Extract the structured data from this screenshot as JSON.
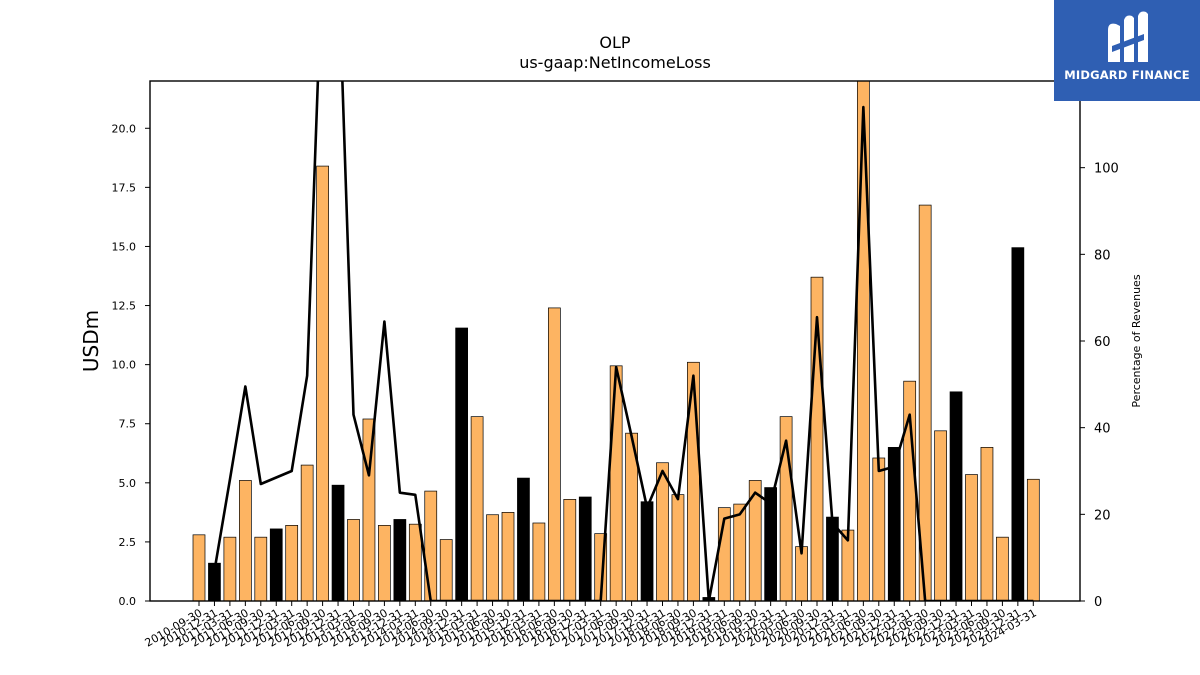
{
  "chart_data": {
    "type": "bar",
    "title": "OLP",
    "subtitle": "us-gaap:NetIncomeLoss",
    "ylabel": "USDm",
    "y2label": "Percentage of Revenues",
    "ylim": [
      0,
      22
    ],
    "y2lim": [
      0,
      120
    ],
    "yticks": [
      "0.0",
      "2.5",
      "5.0",
      "7.5",
      "10.0",
      "12.5",
      "15.0",
      "17.5",
      "20.0"
    ],
    "y2ticks": [
      "0",
      "20",
      "40",
      "60",
      "80",
      "100"
    ],
    "grid": false,
    "colors": {
      "positive": "#fdb462",
      "highlight": "#000000",
      "line": "#000000"
    },
    "categories": [
      "2010-09-30",
      "2010-12-31",
      "2011-03-31",
      "2011-06-30",
      "2011-09-30",
      "2011-12-31",
      "2012-03-31",
      "2012-06-30",
      "2012-09-30",
      "2012-12-31",
      "2013-03-31",
      "2013-06-30",
      "2013-09-30",
      "2013-12-31",
      "2014-03-31",
      "2014-06-30",
      "2014-09-30",
      "2014-12-31",
      "2015-03-31",
      "2015-06-30",
      "2015-09-30",
      "2015-12-31",
      "2016-03-31",
      "2016-06-30",
      "2016-09-30",
      "2016-12-31",
      "2017-03-31",
      "2017-06-30",
      "2017-09-30",
      "2017-12-31",
      "2018-03-31",
      "2018-06-30",
      "2018-09-30",
      "2018-12-31",
      "2019-03-31",
      "2019-06-30",
      "2019-09-30",
      "2019-12-31",
      "2020-03-31",
      "2020-06-30",
      "2020-09-30",
      "2020-12-31",
      "2021-03-31",
      "2021-06-30",
      "2021-09-30",
      "2021-12-31",
      "2022-03-31",
      "2022-06-30",
      "2022-09-30",
      "2022-12-31",
      "2023-03-31",
      "2023-06-30",
      "2023-09-30",
      "2023-12-31",
      "2024-03-31"
    ],
    "xticks_shown": [
      "2010-09-30",
      "2010-12-31",
      "2011-03-31",
      "2011-06-30",
      "2011-09-30",
      "2011-12-31",
      "2012-03-31",
      "2012-06-30",
      "2012-09-30",
      "2012-12-31",
      "2013-03-31",
      "2013-06-30",
      "2013-09-30",
      "2013-12-31",
      "2014-03-31",
      "2014-06-30",
      "2014-09-30",
      "2014-12-31",
      "2015-03-31",
      "2015-06-30",
      "2015-09-30",
      "2015-12-31",
      "2016-03-31",
      "2016-06-30",
      "2016-09-30",
      "2016-12-31",
      "2017-03-31",
      "2017-06-30",
      "2017-09-30",
      "2017-12-31",
      "2018-03-31",
      "2018-06-30",
      "2018-09-30",
      "2018-12-31",
      "2019-03-31",
      "2019-06-30",
      "2019-09-30",
      "2019-12-31",
      "2020-03-31",
      "2020-06-30",
      "2020-09-30",
      "2020-12-31",
      "2021-03-31",
      "2021-06-30",
      "2021-09-30",
      "2021-12-31",
      "2022-03-31",
      "2022-06-30",
      "2022-09-30",
      "2022-12-31",
      "2023-03-31",
      "2023-06-30",
      "2023-09-30",
      "2023-12-31",
      "2024-03-31"
    ],
    "series": [
      {
        "values": [
          2.8,
          1.6,
          2.7,
          5.1,
          2.7,
          3.05,
          3.2,
          5.75,
          18.4,
          4.9,
          3.45,
          7.7,
          3.2,
          3.45,
          3.25,
          4.65,
          2.6,
          11.55,
          7.8,
          3.65,
          3.75,
          5.2,
          3.3,
          12.4,
          4.3,
          4.4,
          2.85,
          9.95,
          7.1,
          4.2,
          5.85,
          4.5,
          10.1,
          0.15,
          3.95,
          4.1,
          5.1,
          4.8,
          7.8,
          2.3,
          13.7,
          3.55,
          3.0,
          22.5,
          6.05,
          6.5,
          9.3,
          16.75,
          7.2,
          8.85,
          5.35,
          6.5,
          2.7,
          14.95,
          5.15
        ],
        "highlighted": [
          false,
          true,
          false,
          false,
          false,
          true,
          false,
          false,
          false,
          true,
          false,
          false,
          false,
          true,
          false,
          false,
          false,
          true,
          false,
          false,
          false,
          true,
          false,
          false,
          false,
          true,
          false,
          false,
          false,
          true,
          false,
          false,
          false,
          true,
          false,
          false,
          false,
          true,
          false,
          false,
          false,
          true,
          false,
          false,
          false,
          true,
          false,
          false,
          false,
          true,
          false,
          false,
          false,
          true,
          false
        ]
      },
      {
        "type": "line",
        "axis": "right",
        "values": [
          null,
          7,
          28,
          49.5,
          27,
          28.5,
          30,
          52,
          150,
          150,
          43,
          29,
          64.5,
          25,
          24.5,
          0,
          0,
          0,
          0,
          0,
          0,
          0,
          0,
          0,
          0,
          0,
          0,
          54,
          38,
          21.5,
          30,
          23.5,
          52,
          0,
          19,
          20,
          25,
          22.5,
          37,
          11,
          65.5,
          18,
          14,
          114,
          30,
          31,
          43,
          0,
          0,
          0,
          0,
          0,
          0,
          0,
          0
        ]
      }
    ]
  },
  "logo": {
    "text": "MIDGARD FINANCE",
    "icon": "midgard-logo-icon"
  }
}
